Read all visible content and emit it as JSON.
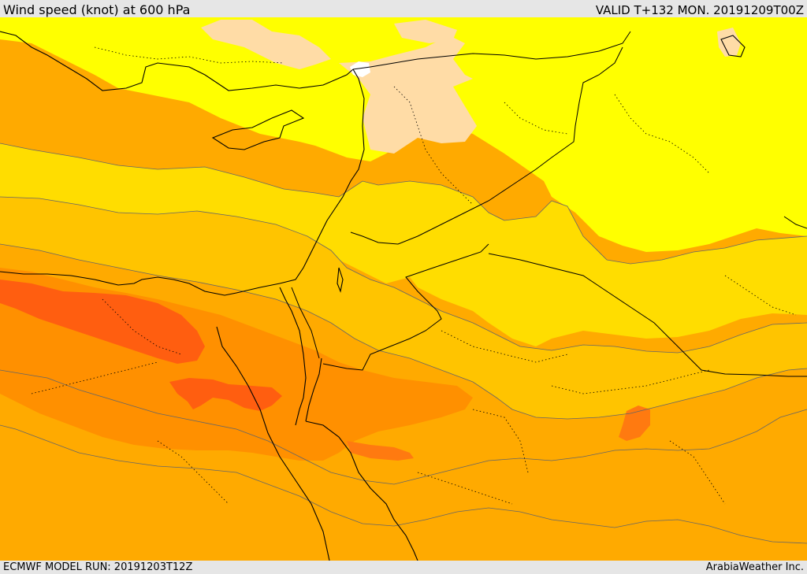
{
  "header": {
    "title": "Wind speed (knot) at 600 hPa",
    "valid": "VALID T+132 MON. 20191209T00Z"
  },
  "footer": {
    "model_run": "ECMWF MODEL RUN: 20191203T12Z",
    "credit": "ArabiaWeather Inc."
  },
  "colors": {
    "very_light": "#ffdca6",
    "light": "#ffff00",
    "yellow": "#ffdd00",
    "gold": "#ffc400",
    "orange_light": "#ffaa00",
    "orange": "#ff9000",
    "orange_dark": "#ff7a10",
    "red_orange": "#ff5e10",
    "no_data": "#ffffff",
    "boundary": "#000000",
    "contour": "#666666"
  }
}
